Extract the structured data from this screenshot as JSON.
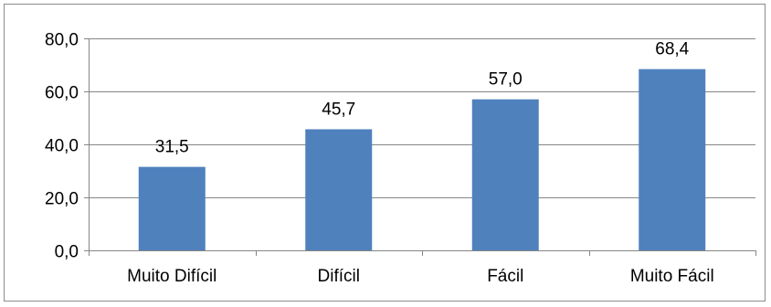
{
  "chart_data": {
    "type": "bar",
    "categories": [
      "Muito Difícil",
      "Difícil",
      "Fácil",
      "Muito Fácil"
    ],
    "values": [
      31.5,
      45.7,
      57.0,
      68.4
    ],
    "value_labels": [
      "31,5",
      "45,7",
      "57,0",
      "68,4"
    ],
    "y_tick_values": [
      0,
      20,
      40,
      60,
      80
    ],
    "y_tick_labels": [
      "0,0",
      "20,0",
      "40,0",
      "60,0",
      "80,0"
    ],
    "ylim": [
      0,
      80
    ],
    "grid": true,
    "bar_color": "#4f81bd",
    "gridline_color": "#868686",
    "title": "",
    "xlabel": "",
    "ylabel": ""
  }
}
